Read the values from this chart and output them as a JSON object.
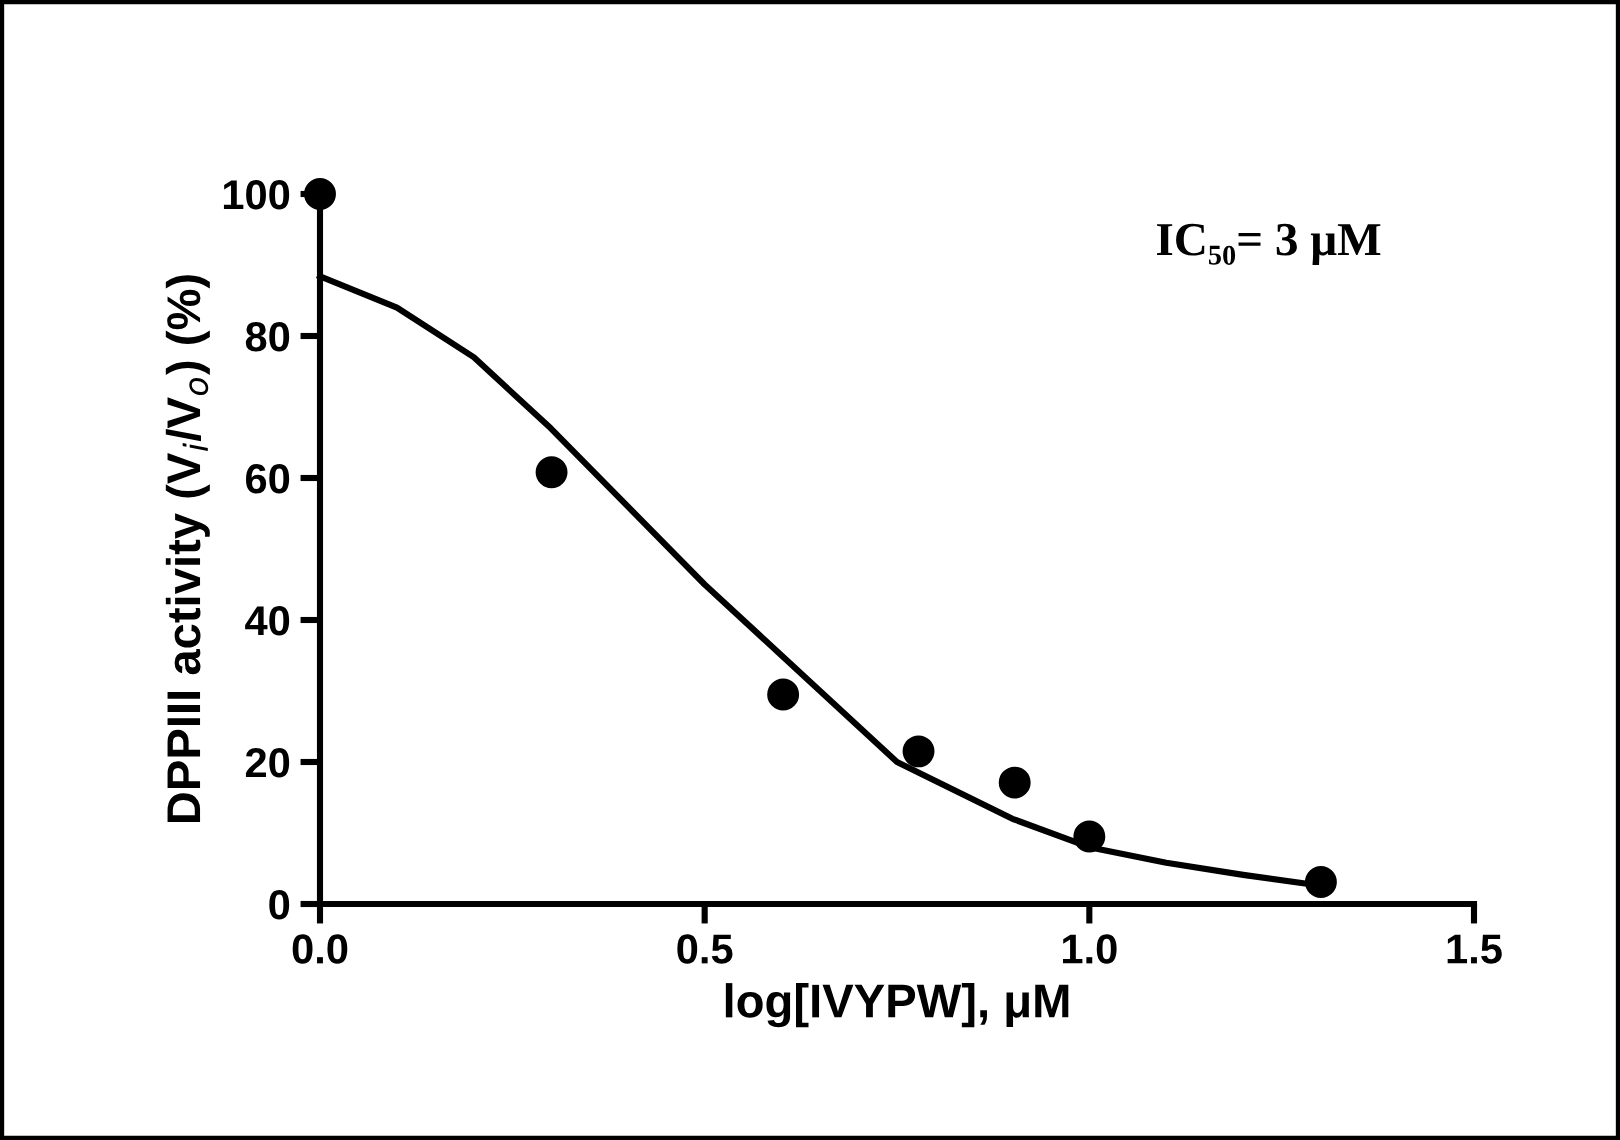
{
  "chart_data": {
    "type": "scatter",
    "xlabel": "log[IVYPW], μM",
    "ylabel": "DPPIII activity (V$_{i}$/V$_{o}$) (%)",
    "annotations": [
      "IC₅₀= 3 μM"
    ],
    "xlim": [
      0,
      1.5
    ],
    "xticks": [
      {
        "value": 0,
        "label": "0.0"
      },
      0.5,
      {
        "value": 1,
        "label": "1.0"
      },
      1.5
    ],
    "ylim": [
      0,
      100
    ],
    "yticks": [
      0,
      20,
      40,
      60,
      80,
      100
    ],
    "grid": false,
    "legend": false,
    "series": [
      {
        "color": "#000000",
        "marker": "circle",
        "x": [
          0,
          0.301,
          0.602,
          0.778,
          0.903,
          1.0,
          1.301
        ],
        "values": [
          100,
          60.8,
          29.5,
          21.5,
          17.1,
          9.5,
          3.1
        ]
      },
      {
        "type": "line",
        "color": "#000000",
        "marker": "none",
        "line_style": "solid",
        "x": [
          0,
          0.1,
          0.2,
          0.3,
          0.4,
          0.5,
          0.6,
          0.75,
          0.9,
          1.0,
          1.1,
          1.2,
          1.3
        ],
        "values": [
          88.4,
          84,
          77,
          67,
          56,
          45,
          35,
          20,
          12,
          8,
          5.8,
          4.1,
          2.6
        ]
      }
    ]
  }
}
